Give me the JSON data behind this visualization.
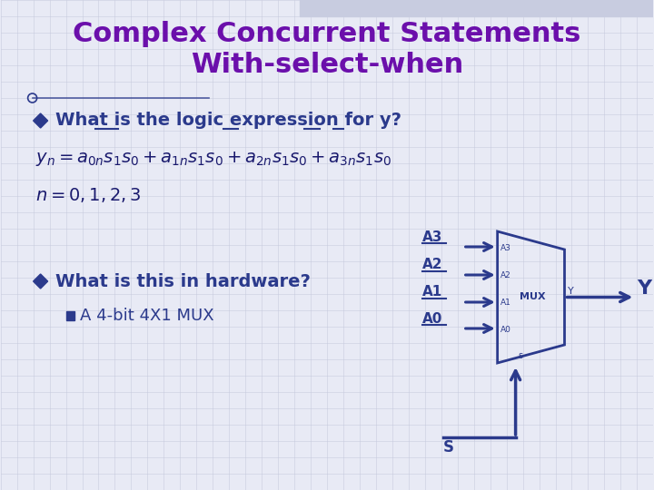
{
  "title_line1": "Complex Concurrent Statements",
  "title_line2": "With-select-when",
  "title_color": "#6B0FAB",
  "title_fontsize": 22,
  "slide_bg": "#E8EAF5",
  "grid_color": "#C5C8DC",
  "text_color": "#2B3A8C",
  "bullet_color": "#2B3A8C",
  "formula_color": "#1a1a6e",
  "mux_color": "#2B3A8C",
  "arrow_color": "#2B3A8C",
  "bullet1_text": "What is the logic expression for y?",
  "bullet2_text": "What is this in hardware?",
  "sub_bullet_text": "A 4-bit 4X1 MUX",
  "mux_inputs": [
    "A3",
    "A2",
    "A1",
    "A0"
  ],
  "mux_small_labels": [
    "A3",
    "A2",
    "A1",
    "A0"
  ]
}
